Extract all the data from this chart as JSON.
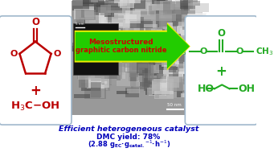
{
  "bg_color": "#ffffff",
  "box_edge_color": "#a0b8cc",
  "reactant_color": "#bb0000",
  "product_color": "#22aa22",
  "arrow_face_color": "#22cc00",
  "arrow_edge_color": "#dddd00",
  "arrow_text_line1": "Mesostructured",
  "arrow_text_line2": "graphitic carbon nitride",
  "arrow_text_color": "#cc0000",
  "bottom_color": "#0000bb",
  "bottom_line1": "Efficient heterogeneous catalyst",
  "bottom_line2": "DMC yield: 78%",
  "bottom_line3": "(2.88 g",
  "tem_base_color": "#888888"
}
